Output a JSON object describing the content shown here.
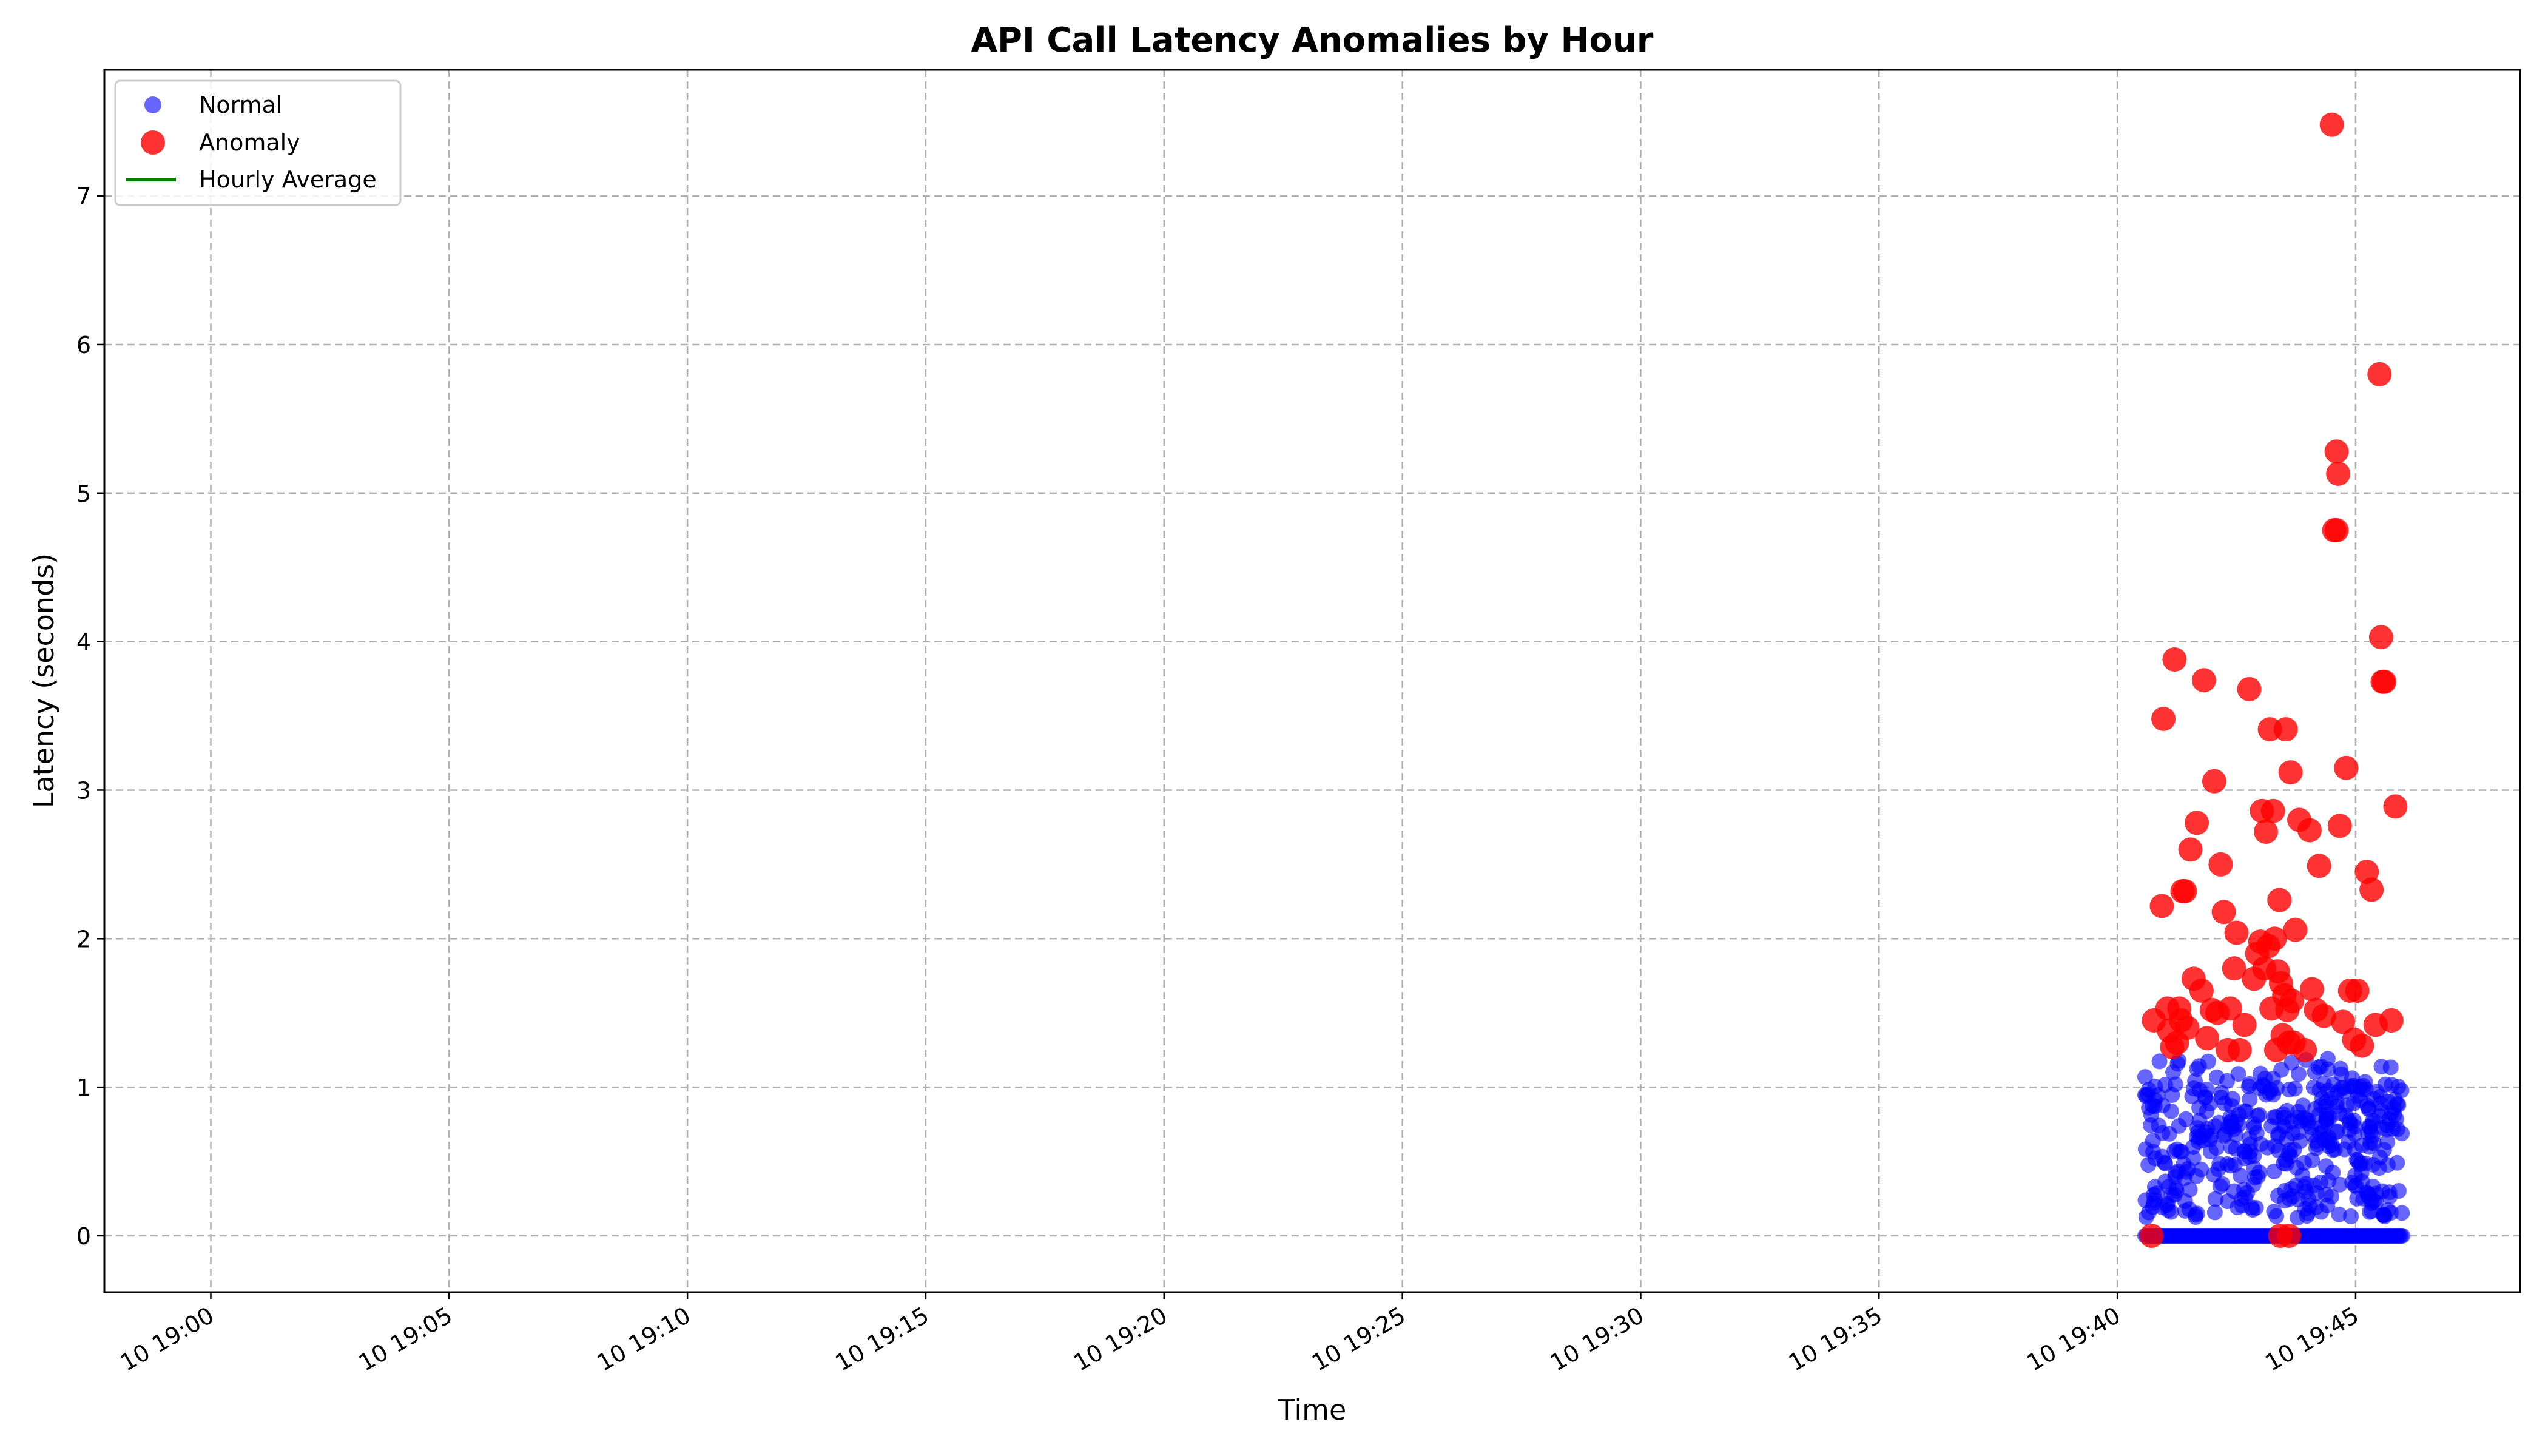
{
  "chart_data": {
    "type": "scatter",
    "title": "API Call Latency Anomalies by Hour",
    "xlabel": "Time",
    "ylabel": "Latency (seconds)",
    "x_ticks": [
      "10 19:00",
      "10 19:05",
      "10 19:10",
      "10 19:15",
      "10 19:20",
      "10 19:25",
      "10 19:30",
      "10 19:35",
      "10 19:40",
      "10 19:45"
    ],
    "x_range": [
      "10 18:57:46",
      "10 19:48:27"
    ],
    "y_ticks": [
      "0",
      "1",
      "2",
      "3",
      "4",
      "5",
      "6",
      "7"
    ],
    "ylim": [
      -0.38,
      7.85
    ],
    "grid": true,
    "legend_position": "top-left",
    "legend": [
      "Normal",
      "Anomaly",
      "Hourly Average"
    ],
    "colors": {
      "normal": "#0000ff",
      "anomaly": "#ff0000",
      "hourly_average": "#008000"
    },
    "series": [
      {
        "name": "Anomaly",
        "x": [
          "19:40:43",
          "19:40:46",
          "19:40:56",
          "19:40:58",
          "19:41:03",
          "19:41:05",
          "19:41:09",
          "19:41:12",
          "19:41:15",
          "19:41:18",
          "19:41:20",
          "19:41:22",
          "19:41:25",
          "19:41:28",
          "19:41:32",
          "19:41:36",
          "19:41:40",
          "19:41:46",
          "19:41:49",
          "19:41:53",
          "19:41:59",
          "19:42:02",
          "19:42:06",
          "19:42:10",
          "19:42:14",
          "19:42:19",
          "19:42:22",
          "19:42:27",
          "19:42:30",
          "19:42:34",
          "19:42:40",
          "19:42:46",
          "19:42:52",
          "19:42:56",
          "19:43:00",
          "19:43:02",
          "19:43:05",
          "19:43:07",
          "19:43:10",
          "19:43:12",
          "19:43:14",
          "19:43:16",
          "19:43:18",
          "19:43:20",
          "19:43:22",
          "19:43:24",
          "19:43:26",
          "19:43:28",
          "19:43:30",
          "19:43:32",
          "19:43:34",
          "19:43:36",
          "19:43:38",
          "19:43:40",
          "19:43:42",
          "19:43:44",
          "19:43:49",
          "19:43:56",
          "19:44:02",
          "19:44:05",
          "19:44:10",
          "19:44:14",
          "19:44:20",
          "19:44:30",
          "19:44:33",
          "19:44:36",
          "19:44:36",
          "19:44:38",
          "19:44:40",
          "19:44:44",
          "19:44:48",
          "19:44:53",
          "19:44:58",
          "19:45:02",
          "19:45:08",
          "19:45:14",
          "19:45:20",
          "19:45:25",
          "19:45:30",
          "19:45:32",
          "19:45:34",
          "19:45:36",
          "19:45:45",
          "19:45:50",
          "19:43:25",
          "19:43:36"
        ],
        "y": [
          0.0,
          1.45,
          2.22,
          3.48,
          1.53,
          1.38,
          1.27,
          3.88,
          1.3,
          1.53,
          1.45,
          2.32,
          2.32,
          1.4,
          2.6,
          1.73,
          2.78,
          1.65,
          3.74,
          1.33,
          1.52,
          3.06,
          1.5,
          2.5,
          2.18,
          1.25,
          1.53,
          1.8,
          2.04,
          1.25,
          1.42,
          3.68,
          1.73,
          1.9,
          1.98,
          2.86,
          1.8,
          2.72,
          1.95,
          3.41,
          1.53,
          2.86,
          2.0,
          1.25,
          1.78,
          2.26,
          1.7,
          1.35,
          1.62,
          3.41,
          1.52,
          1.3,
          3.12,
          1.58,
          1.3,
          2.06,
          2.8,
          1.25,
          2.73,
          1.66,
          1.52,
          2.49,
          1.48,
          7.48,
          4.75,
          4.75,
          5.28,
          5.13,
          2.76,
          1.44,
          3.15,
          1.65,
          1.32,
          1.65,
          1.28,
          2.45,
          2.33,
          1.42,
          5.8,
          4.03,
          3.73,
          3.73,
          1.45,
          2.89,
          0.0,
          0.0
        ]
      },
      {
        "name": "Normal",
        "x_range": [
          "19:40:35",
          "19:46:00"
        ],
        "y_range": [
          0.0,
          1.2
        ],
        "note_points": 420
      },
      {
        "name": "Hourly Average",
        "values": []
      }
    ]
  }
}
